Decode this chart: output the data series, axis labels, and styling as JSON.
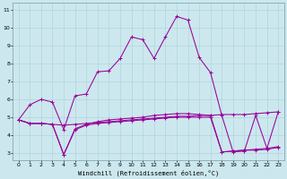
{
  "xlabel": "Windchill (Refroidissement éolien,°C)",
  "background_color": "#cce8ee",
  "line_color": "#990099",
  "x_ticks": [
    0,
    1,
    2,
    3,
    4,
    5,
    6,
    7,
    8,
    9,
    10,
    11,
    12,
    13,
    14,
    15,
    16,
    17,
    18,
    19,
    20,
    21,
    22,
    23
  ],
  "y_ticks": [
    3,
    4,
    5,
    6,
    7,
    8,
    9,
    10,
    11
  ],
  "xlim": [
    -0.5,
    23.5
  ],
  "ylim": [
    2.6,
    11.4
  ],
  "series1": {
    "x": [
      0,
      1,
      2,
      3,
      4,
      5,
      6,
      7,
      8,
      9,
      10,
      11,
      12,
      13,
      14,
      15,
      16,
      17,
      18,
      19,
      20,
      21,
      22,
      23
    ],
    "y": [
      4.85,
      4.65,
      4.65,
      4.6,
      4.55,
      4.6,
      4.65,
      4.7,
      4.75,
      4.8,
      4.85,
      4.9,
      4.95,
      5.0,
      5.05,
      5.05,
      5.1,
      5.1,
      5.15,
      5.15,
      5.15,
      5.2,
      5.25,
      5.3
    ]
  },
  "series2": {
    "x": [
      0,
      1,
      2,
      3,
      4,
      5,
      6,
      7,
      8,
      9,
      10,
      11,
      12,
      13,
      14,
      15,
      16,
      17,
      18,
      19,
      20,
      21,
      22,
      23
    ],
    "y": [
      4.85,
      4.65,
      4.65,
      4.6,
      2.9,
      4.3,
      4.55,
      4.65,
      4.7,
      4.75,
      4.8,
      4.85,
      4.9,
      4.95,
      5.0,
      5.0,
      5.0,
      5.0,
      3.05,
      3.1,
      3.15,
      3.15,
      3.2,
      3.3
    ]
  },
  "series3": {
    "x": [
      0,
      1,
      2,
      3,
      4,
      5,
      6,
      7,
      8,
      9,
      10,
      11,
      12,
      13,
      14,
      15,
      16,
      17,
      18,
      19,
      20,
      21,
      22,
      23
    ],
    "y": [
      4.85,
      4.65,
      4.65,
      4.6,
      2.9,
      4.35,
      4.6,
      4.75,
      4.85,
      4.9,
      4.95,
      5.0,
      5.1,
      5.15,
      5.2,
      5.2,
      5.15,
      5.1,
      3.05,
      3.1,
      3.15,
      3.2,
      3.25,
      3.35
    ]
  },
  "series_main": {
    "x": [
      0,
      1,
      2,
      3,
      4,
      5,
      6,
      7,
      8,
      9,
      10,
      11,
      12,
      13,
      14,
      15,
      16,
      17,
      18,
      19,
      20,
      21,
      22,
      23
    ],
    "y": [
      4.85,
      5.7,
      6.0,
      5.85,
      4.3,
      6.2,
      6.3,
      7.55,
      7.6,
      8.3,
      9.5,
      9.35,
      8.3,
      9.5,
      10.65,
      10.45,
      8.35,
      7.5,
      5.1,
      3.05,
      3.1,
      5.1,
      3.25,
      5.3
    ]
  }
}
